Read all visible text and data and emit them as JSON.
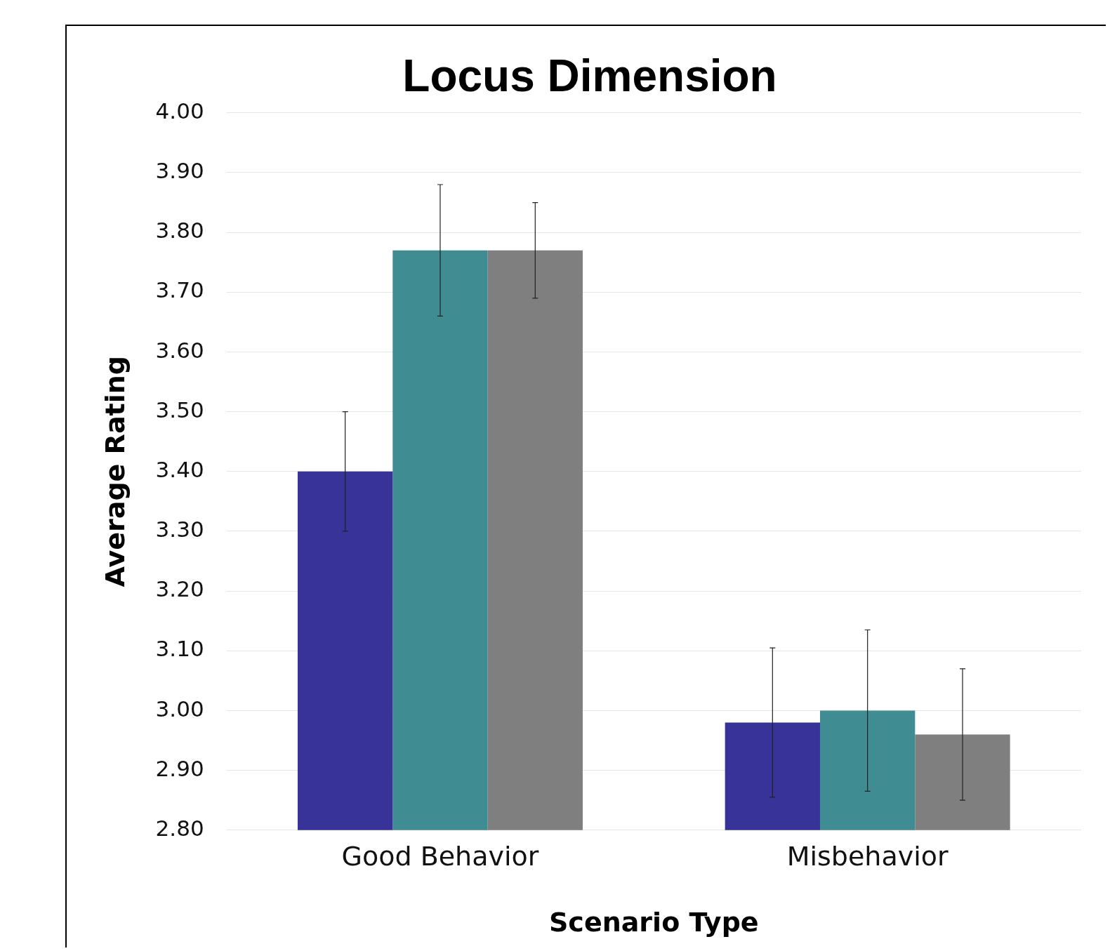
{
  "chart_data": {
    "type": "bar",
    "title": "Locus Dimension",
    "xlabel": "Scenario Type",
    "ylabel": "Average Rating",
    "categories": [
      "Good Behavior",
      "Misbehavior"
    ],
    "series": [
      {
        "color": "#373398",
        "values": [
          3.4,
          2.98
        ],
        "errors": [
          0.1,
          0.125
        ]
      },
      {
        "color": "#3f8c92",
        "values": [
          3.77,
          3.0
        ],
        "errors": [
          0.11,
          0.135
        ]
      },
      {
        "color": "#7f7f7f",
        "values": [
          3.77,
          2.96
        ],
        "errors": [
          0.08,
          0.11
        ]
      }
    ],
    "ylim": [
      2.8,
      4.0
    ],
    "yticks": [
      {
        "value": 2.8,
        "label": "2.80"
      },
      {
        "value": 2.9,
        "label": "2.90"
      },
      {
        "value": 3.0,
        "label": "3.00"
      },
      {
        "value": 3.1,
        "label": "3.10"
      },
      {
        "value": 3.2,
        "label": "3.20"
      },
      {
        "value": 3.3,
        "label": "3.30"
      },
      {
        "value": 3.4,
        "label": "3.40"
      },
      {
        "value": 3.5,
        "label": "3.50"
      },
      {
        "value": 3.6,
        "label": "3.60"
      },
      {
        "value": 3.7,
        "label": "3.70"
      },
      {
        "value": 3.8,
        "label": "3.80"
      },
      {
        "value": 3.9,
        "label": "3.90"
      },
      {
        "value": 4.0,
        "label": "4.00"
      }
    ],
    "grid": "y",
    "legend": false
  }
}
